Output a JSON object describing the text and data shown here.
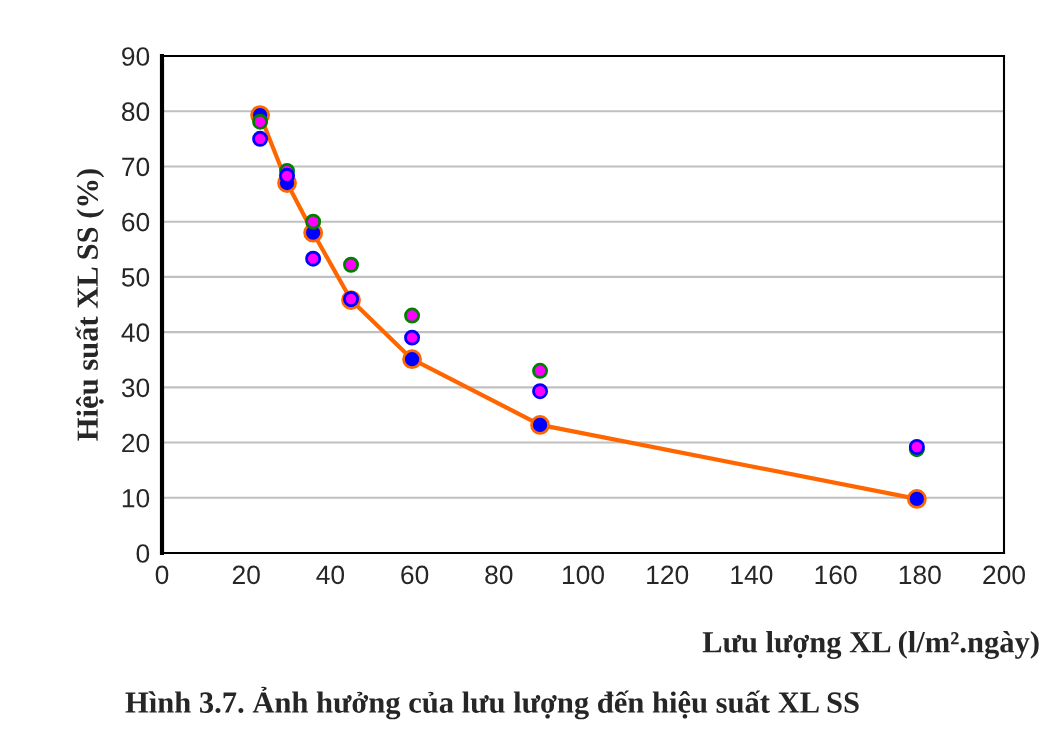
{
  "chart_data": {
    "type": "scatter",
    "xlabel": "Lưu lượng XL (l/m².ngày)",
    "ylabel": "Hiệu suất XL SS (%)",
    "annotations": [
      "Hình 3.7. Ảnh hưởng của lưu lượng đến hiệu suất XL SS"
    ],
    "x": [
      23.3,
      29.7,
      35.9,
      44.9,
      59.4,
      89.8,
      179.3
    ],
    "series": [
      {
        "color": "#008000",
        "values": [
          78.1,
          69.2,
          60.0,
          52.2,
          43.0,
          33.0,
          18.8
        ]
      },
      {
        "color": "#0000ff",
        "values": [
          75.0,
          68.3,
          53.3,
          46.0,
          39.0,
          29.3,
          19.2
        ]
      },
      {
        "type": "line",
        "color": "#ff6600",
        "values": [
          79.3,
          67.0,
          58.0,
          45.8,
          35.1,
          23.2,
          9.8
        ]
      }
    ],
    "xlim": [
      0,
      200
    ],
    "xticks": [
      0,
      20,
      40,
      60,
      80,
      100,
      120,
      140,
      160,
      180,
      200
    ],
    "ylim": [
      0,
      90
    ],
    "yticks": [
      0,
      10,
      20,
      30,
      40,
      50,
      60,
      70,
      80,
      90
    ],
    "grid": "y",
    "marker": "circle",
    "legend": false
  }
}
